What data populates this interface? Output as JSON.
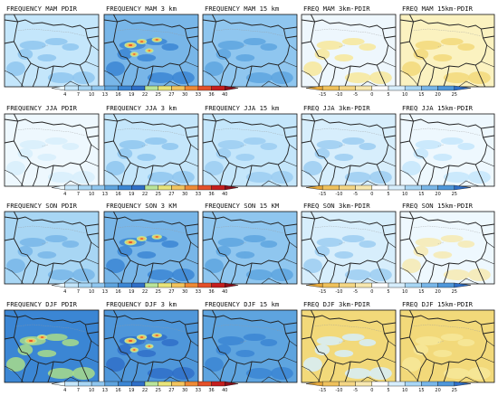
{
  "rows": [
    {
      "season": "MAM",
      "titles": [
        "FREQUENCY MAM PDIR",
        "FREQUENCY MAM 3 km",
        "FREQUENCY MAM 15 km",
        "FREQ MAM 3km-PDIR",
        "FREQ MAM 15km-PDIR"
      ],
      "fill_levels": [
        {
          "base": "#c4e6fb",
          "accent": "#8fc6ef",
          "hot": 0.0
        },
        {
          "base": "#78b6e8",
          "accent": "#3b86d4",
          "hot": 0.9
        },
        {
          "base": "#8fc6ef",
          "accent": "#5ea4df",
          "hot": 0.0
        },
        {
          "base": "#eef7fd",
          "accent": "#f7e79a",
          "hot": 0.0
        },
        {
          "base": "#fbf2c0",
          "accent": "#f2d97a",
          "hot": 0.0
        }
      ]
    },
    {
      "season": "JJA",
      "titles": [
        "FREQUENCY JJA PDIR",
        "FREQUENCY JJA 3 km",
        "FREQUENCY JJA 15 km",
        "FREQ JJA 3km-PDIR",
        "FREQ JJA 15km-PDIR"
      ],
      "fill_levels": [
        {
          "base": "#eef8fe",
          "accent": "#d7eefc",
          "hot": 0.0
        },
        {
          "base": "#c4e6fb",
          "accent": "#8fc6ef",
          "hot": 0.0
        },
        {
          "base": "#c4e6fb",
          "accent": "#9ccdf1",
          "hot": 0.0
        },
        {
          "base": "#d7eefc",
          "accent": "#9ccdf1",
          "hot": 0.0
        },
        {
          "base": "#eef8fe",
          "accent": "#c4e6fb",
          "hot": 0.0
        }
      ]
    },
    {
      "season": "SON",
      "titles": [
        "FREQUENCY SON PDIR",
        "FREQUENCY SON 3 KM",
        "FREQUENCY SON 15 KM",
        "FREQ SON 3km-PDIR",
        "FREQ SON 15km-PDIR"
      ],
      "fill_levels": [
        {
          "base": "#a8d6f4",
          "accent": "#78b6e8",
          "hot": 0.0
        },
        {
          "base": "#78b6e8",
          "accent": "#3b86d4",
          "hot": 0.5
        },
        {
          "base": "#8fc6ef",
          "accent": "#5ea4df",
          "hot": 0.0
        },
        {
          "base": "#d7eefc",
          "accent": "#9ccdf1",
          "hot": 0.0
        },
        {
          "base": "#eef8fe",
          "accent": "#f6eab2",
          "hot": 0.0
        }
      ]
    },
    {
      "season": "DJF",
      "titles": [
        "FREQUENCY DJF PDIR",
        "FREQUENCY DJF 3 km",
        "FREQUENCY DJF 15 km",
        "FREQ DJF 3km-PDIR",
        "FREQ DJF 15km-PDIR"
      ],
      "fill_levels": [
        {
          "base": "#3b86d4",
          "accent": "#a9dc8a",
          "hot": 0.3
        },
        {
          "base": "#4f97da",
          "accent": "#2f6fc8",
          "hot": 1.0
        },
        {
          "base": "#5ea4df",
          "accent": "#3b86d4",
          "hot": 0.0
        },
        {
          "base": "#f2d97a",
          "accent": "#d7eefc",
          "hot": 0.0
        },
        {
          "base": "#f2d97a",
          "accent": "#f7e79a",
          "hot": 0.0
        }
      ]
    }
  ],
  "colorbars": {
    "frequency": {
      "ticks": [
        "4",
        "7",
        "10",
        "13",
        "16",
        "19",
        "22",
        "25",
        "27",
        "30",
        "33",
        "36",
        "40"
      ],
      "colors": [
        "#eaf7fe",
        "#c4e6fb",
        "#a8d6f4",
        "#8fc6ef",
        "#5ea4df",
        "#3b86d4",
        "#2f6fc8",
        "#b9e49a",
        "#e8e47a",
        "#f2c45e",
        "#ee8a36",
        "#e4502a",
        "#c41e1e",
        "#8c0f1a"
      ]
    },
    "difference": {
      "ticks": [
        "-15",
        "-10",
        "-5",
        "0",
        "5",
        "10",
        "15",
        "20",
        "25"
      ],
      "colors": [
        "#e7a93c",
        "#efc15c",
        "#f4d684",
        "#f8e8b0",
        "#ffffff",
        "#d7eefc",
        "#a8d6f4",
        "#78b6e8",
        "#4f97da",
        "#2f6fc8"
      ]
    }
  },
  "map": {
    "border_color": "#222222",
    "sea_color": "#5ea4df"
  }
}
